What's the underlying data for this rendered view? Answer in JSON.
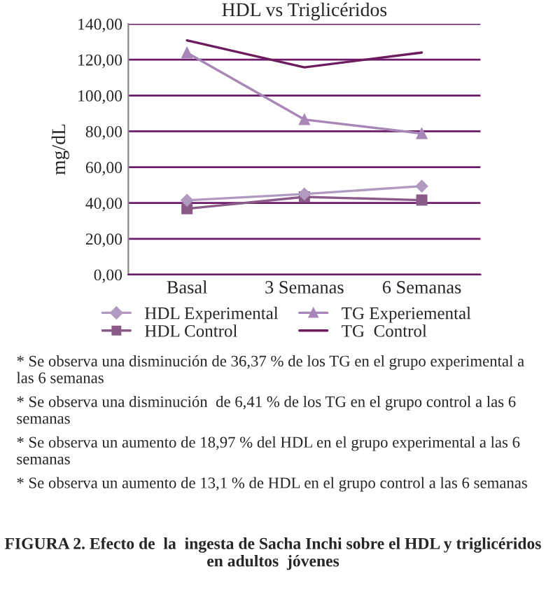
{
  "chart_data": {
    "type": "line",
    "title": "HDL vs Triglicéridos",
    "ylabel": "mg/dL",
    "categories": [
      "Basal",
      "3 Semanas",
      "6 Semanas"
    ],
    "series": [
      {
        "name": "HDL Experimental",
        "color": "#b09ac0",
        "marker": "diamond",
        "values": [
          41.5,
          45,
          49.4
        ]
      },
      {
        "name": "HDL Control",
        "color": "#8a5a88",
        "marker": "square",
        "values": [
          36.8,
          43.4,
          41.6
        ]
      },
      {
        "name": "TG Experiemental",
        "color": "#a887b8",
        "marker": "triangle",
        "values": [
          123.9,
          86.6,
          78.8
        ]
      },
      {
        "name": "TG  Control",
        "color": "#6b1d5e",
        "marker": "none",
        "values": [
          130.8,
          115.7,
          124
        ]
      }
    ],
    "ylim": [
      0,
      140
    ],
    "yticks": [
      {
        "value": 0,
        "label": "0,00"
      },
      {
        "value": 20,
        "label": "20,00"
      },
      {
        "value": 40,
        "label": "40,00"
      },
      {
        "value": 60,
        "label": "60,00"
      },
      {
        "value": 80,
        "label": "80,00"
      },
      {
        "value": 100,
        "label": "100,00"
      },
      {
        "value": 120,
        "label": "120,00"
      },
      {
        "value": 140,
        "label": "140,00"
      }
    ],
    "grid": "y",
    "legend": "bottom",
    "annotations": [
      "* Se observa una disminución de 36,37 % de los TG en el grupo experimental a las 6 semanas",
      "* Se observa una disminución  de 6,41 % de los TG en el grupo control a las 6 semanas",
      "* Se observa un aumento de 18,97 % del HDL en el grupo experimental a las 6 semanas",
      "* Se observa un aumento de 13,1 % de HDL en el grupo control a las 6 semanas",
      "FIGURA 2. Efecto de  la  ingesta de Sacha Inchi sobre el HDL y triglicéridos en adultos  jóvenes"
    ]
  }
}
